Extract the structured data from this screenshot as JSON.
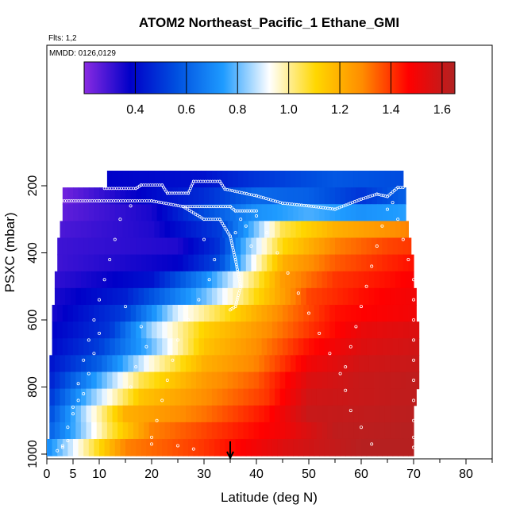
{
  "chart_data": {
    "type": "heatmap",
    "title": "ATOM2 Northeast_Pacific_1 Ethane_GMI",
    "flights_label": "Flts: 1,2",
    "dates_label": "MMDD: 0126,0129",
    "xlabel": "Latitude (deg N)",
    "ylabel": "PSXC (mbar)",
    "xlim": [
      0,
      85
    ],
    "ylim": [
      1000,
      0
    ],
    "x_ticks": [
      0,
      5,
      10,
      20,
      30,
      40,
      50,
      60,
      70,
      80
    ],
    "x_tick_labels": [
      "0",
      "5",
      "10",
      "20",
      "30",
      "40",
      "50",
      "60",
      "70",
      "80"
    ],
    "y_ticks": [
      200,
      400,
      600,
      800,
      1000
    ],
    "y_tick_labels": [
      "200",
      "400",
      "600",
      "800",
      "1000"
    ],
    "colorbar": {
      "range": [
        0.2,
        1.65
      ],
      "ticks": [
        0.4,
        0.6,
        0.8,
        1.0,
        1.2,
        1.4,
        1.6
      ],
      "tick_labels": [
        "0.4",
        "0.6",
        "0.8",
        "1.0",
        "1.2",
        "1.4",
        "1.6"
      ],
      "colors": [
        "#8a2be2",
        "#0000c8",
        "#0050e0",
        "#1e9bff",
        "#ffffff",
        "#ffd700",
        "#ff8c00",
        "#ff0000",
        "#b22222"
      ]
    },
    "marker_latitude": 35,
    "pressure_levels": [
      180,
      230,
      280,
      330,
      380,
      430,
      480,
      530,
      580,
      630,
      680,
      730,
      780,
      830,
      880,
      930,
      980
    ],
    "lat_extent": [
      [
        11.5,
        68
      ],
      [
        3,
        68.5
      ],
      [
        3,
        68.5
      ],
      [
        2.5,
        69
      ],
      [
        2,
        69.5
      ],
      [
        2,
        70
      ],
      [
        1.5,
        70
      ],
      [
        1.5,
        70.5
      ],
      [
        1,
        70.5
      ],
      [
        1,
        71
      ],
      [
        1,
        71
      ],
      [
        0.5,
        71
      ],
      [
        0.5,
        71
      ],
      [
        0.5,
        70.5
      ],
      [
        0.5,
        70
      ],
      [
        0.5,
        70
      ],
      [
        0,
        70
      ]
    ],
    "value_profiles": [
      [
        [
          10,
          0.38
        ],
        [
          30,
          0.42
        ],
        [
          40,
          0.5
        ],
        [
          55,
          0.58
        ],
        [
          68,
          0.55
        ]
      ],
      [
        [
          2,
          0.22
        ],
        [
          15,
          0.36
        ],
        [
          30,
          0.48
        ],
        [
          40,
          0.62
        ],
        [
          50,
          0.6
        ],
        [
          60,
          0.5
        ],
        [
          68,
          0.6
        ]
      ],
      [
        [
          2,
          0.25
        ],
        [
          20,
          0.35
        ],
        [
          30,
          0.55
        ],
        [
          40,
          0.72
        ],
        [
          50,
          0.78
        ],
        [
          60,
          0.72
        ],
        [
          68,
          0.75
        ]
      ],
      [
        [
          2,
          0.28
        ],
        [
          20,
          0.34
        ],
        [
          33,
          0.52
        ],
        [
          40,
          0.82
        ],
        [
          45,
          1.05
        ],
        [
          55,
          1.2
        ],
        [
          62,
          1.25
        ],
        [
          69,
          1.3
        ]
      ],
      [
        [
          2,
          0.3
        ],
        [
          25,
          0.34
        ],
        [
          33,
          0.5
        ],
        [
          38,
          0.8
        ],
        [
          45,
          1.1
        ],
        [
          55,
          1.3
        ],
        [
          65,
          1.38
        ],
        [
          70,
          1.4
        ]
      ],
      [
        [
          2,
          0.3
        ],
        [
          25,
          0.38
        ],
        [
          33,
          0.55
        ],
        [
          40,
          0.95
        ],
        [
          45,
          1.2
        ],
        [
          55,
          1.35
        ],
        [
          65,
          1.42
        ],
        [
          70,
          1.45
        ]
      ],
      [
        [
          2,
          0.32
        ],
        [
          20,
          0.42
        ],
        [
          30,
          0.7
        ],
        [
          40,
          1.05
        ],
        [
          45,
          1.25
        ],
        [
          55,
          1.4
        ],
        [
          65,
          1.45
        ],
        [
          70,
          1.48
        ]
      ],
      [
        [
          2,
          0.35
        ],
        [
          15,
          0.45
        ],
        [
          30,
          0.8
        ],
        [
          40,
          1.1
        ],
        [
          50,
          1.38
        ],
        [
          60,
          1.45
        ],
        [
          70,
          1.5
        ]
      ],
      [
        [
          1,
          0.35
        ],
        [
          15,
          0.52
        ],
        [
          25,
          0.9
        ],
        [
          35,
          1.1
        ],
        [
          45,
          1.3
        ],
        [
          55,
          1.45
        ],
        [
          70,
          1.5
        ]
      ],
      [
        [
          1,
          0.38
        ],
        [
          12,
          0.5
        ],
        [
          20,
          0.85
        ],
        [
          30,
          1.12
        ],
        [
          40,
          1.25
        ],
        [
          50,
          1.4
        ],
        [
          60,
          1.52
        ],
        [
          70,
          1.55
        ]
      ],
      [
        [
          1,
          0.4
        ],
        [
          10,
          0.52
        ],
        [
          20,
          0.8
        ],
        [
          30,
          1.15
        ],
        [
          40,
          1.28
        ],
        [
          50,
          1.45
        ],
        [
          60,
          1.55
        ],
        [
          71,
          1.58
        ]
      ],
      [
        [
          0.5,
          0.42
        ],
        [
          10,
          0.6
        ],
        [
          20,
          0.95
        ],
        [
          30,
          1.2
        ],
        [
          40,
          1.3
        ],
        [
          50,
          1.5
        ],
        [
          60,
          1.58
        ],
        [
          71,
          1.6
        ]
      ],
      [
        [
          0.5,
          0.45
        ],
        [
          8,
          0.7
        ],
        [
          18,
          1.05
        ],
        [
          30,
          1.25
        ],
        [
          40,
          1.35
        ],
        [
          50,
          1.55
        ],
        [
          60,
          1.6
        ],
        [
          71,
          1.62
        ]
      ],
      [
        [
          0.5,
          0.5
        ],
        [
          8,
          0.8
        ],
        [
          18,
          1.15
        ],
        [
          30,
          1.28
        ],
        [
          42,
          1.4
        ],
        [
          50,
          1.58
        ],
        [
          70,
          1.62
        ]
      ],
      [
        [
          0.5,
          0.55
        ],
        [
          8,
          0.9
        ],
        [
          15,
          1.2
        ],
        [
          30,
          1.32
        ],
        [
          42,
          1.45
        ],
        [
          50,
          1.6
        ],
        [
          70,
          1.63
        ]
      ],
      [
        [
          0.5,
          0.6
        ],
        [
          6,
          0.8
        ],
        [
          12,
          1.05
        ],
        [
          20,
          1.3
        ],
        [
          30,
          1.38
        ],
        [
          45,
          1.5
        ],
        [
          55,
          1.62
        ],
        [
          70,
          1.64
        ]
      ],
      [
        [
          0,
          0.7
        ],
        [
          5,
          0.9
        ],
        [
          10,
          1.1
        ],
        [
          15,
          1.3
        ],
        [
          30,
          1.4
        ],
        [
          45,
          1.55
        ],
        [
          60,
          1.64
        ],
        [
          70,
          1.64
        ]
      ]
    ],
    "flight_track": [
      [
        [
          2,
          245
        ],
        [
          10,
          245
        ],
        [
          20,
          245
        ],
        [
          26,
          262
        ],
        [
          35,
          262
        ],
        [
          36,
          275
        ],
        [
          40,
          275
        ]
      ],
      [
        [
          11,
          208
        ],
        [
          17,
          208
        ],
        [
          18,
          198
        ],
        [
          22,
          198
        ],
        [
          23,
          222
        ],
        [
          27,
          222
        ],
        [
          28,
          187
        ],
        [
          33,
          187
        ],
        [
          34,
          210
        ],
        [
          40,
          230
        ],
        [
          45,
          252
        ],
        [
          50,
          260
        ],
        [
          55,
          270
        ],
        [
          60,
          240
        ],
        [
          63,
          225
        ],
        [
          65,
          232
        ],
        [
          67,
          205
        ],
        [
          68,
          205
        ]
      ],
      [
        [
          26,
          262
        ],
        [
          30,
          300
        ],
        [
          33,
          300
        ],
        [
          35,
          350
        ],
        [
          36,
          420
        ],
        [
          37,
          500
        ],
        [
          36,
          560
        ],
        [
          35,
          570
        ]
      ]
    ],
    "points": [
      [
        3,
        980
      ],
      [
        4,
        920
      ],
      [
        5,
        860
      ],
      [
        6,
        790
      ],
      [
        7,
        720
      ],
      [
        8,
        660
      ],
      [
        9,
        600
      ],
      [
        10,
        540
      ],
      [
        11,
        480
      ],
      [
        12,
        420
      ],
      [
        13,
        360
      ],
      [
        14,
        300
      ],
      [
        16,
        260
      ],
      [
        7,
        820
      ],
      [
        8,
        760
      ],
      [
        9,
        700
      ],
      [
        10,
        640
      ],
      [
        6,
        840
      ],
      [
        5,
        880
      ],
      [
        4,
        960
      ],
      [
        2,
        990
      ],
      [
        3,
        975
      ],
      [
        25,
        975
      ],
      [
        28,
        985
      ],
      [
        20,
        970
      ],
      [
        40,
        290
      ],
      [
        42,
        340
      ],
      [
        44,
        400
      ],
      [
        46,
        460
      ],
      [
        48,
        520
      ],
      [
        50,
        580
      ],
      [
        52,
        640
      ],
      [
        54,
        700
      ],
      [
        56,
        760
      ],
      [
        57,
        810
      ],
      [
        58,
        870
      ],
      [
        60,
        920
      ],
      [
        62,
        970
      ],
      [
        66,
        250
      ],
      [
        67,
        300
      ],
      [
        68,
        360
      ],
      [
        69,
        420
      ],
      [
        70,
        480
      ],
      [
        70,
        540
      ],
      [
        70,
        600
      ],
      [
        70,
        660
      ],
      [
        70,
        720
      ],
      [
        70,
        780
      ],
      [
        70,
        840
      ],
      [
        70,
        900
      ],
      [
        70,
        950
      ],
      [
        70,
        980
      ],
      [
        65,
        270
      ],
      [
        64,
        320
      ],
      [
        63,
        380
      ],
      [
        62,
        440
      ],
      [
        61,
        500
      ],
      [
        60,
        560
      ],
      [
        59,
        620
      ],
      [
        58,
        680
      ],
      [
        57,
        740
      ],
      [
        30,
        360
      ],
      [
        32,
        420
      ],
      [
        31,
        480
      ],
      [
        29,
        540
      ],
      [
        27,
        600
      ],
      [
        25,
        660
      ],
      [
        24,
        720
      ],
      [
        23,
        780
      ],
      [
        22,
        840
      ],
      [
        21,
        900
      ],
      [
        20,
        950
      ],
      [
        38,
        320
      ],
      [
        39,
        380
      ],
      [
        37,
        300
      ],
      [
        36,
        340
      ],
      [
        15,
        560
      ],
      [
        18,
        620
      ],
      [
        19,
        680
      ],
      [
        17,
        740
      ],
      [
        16,
        800
      ]
    ]
  }
}
